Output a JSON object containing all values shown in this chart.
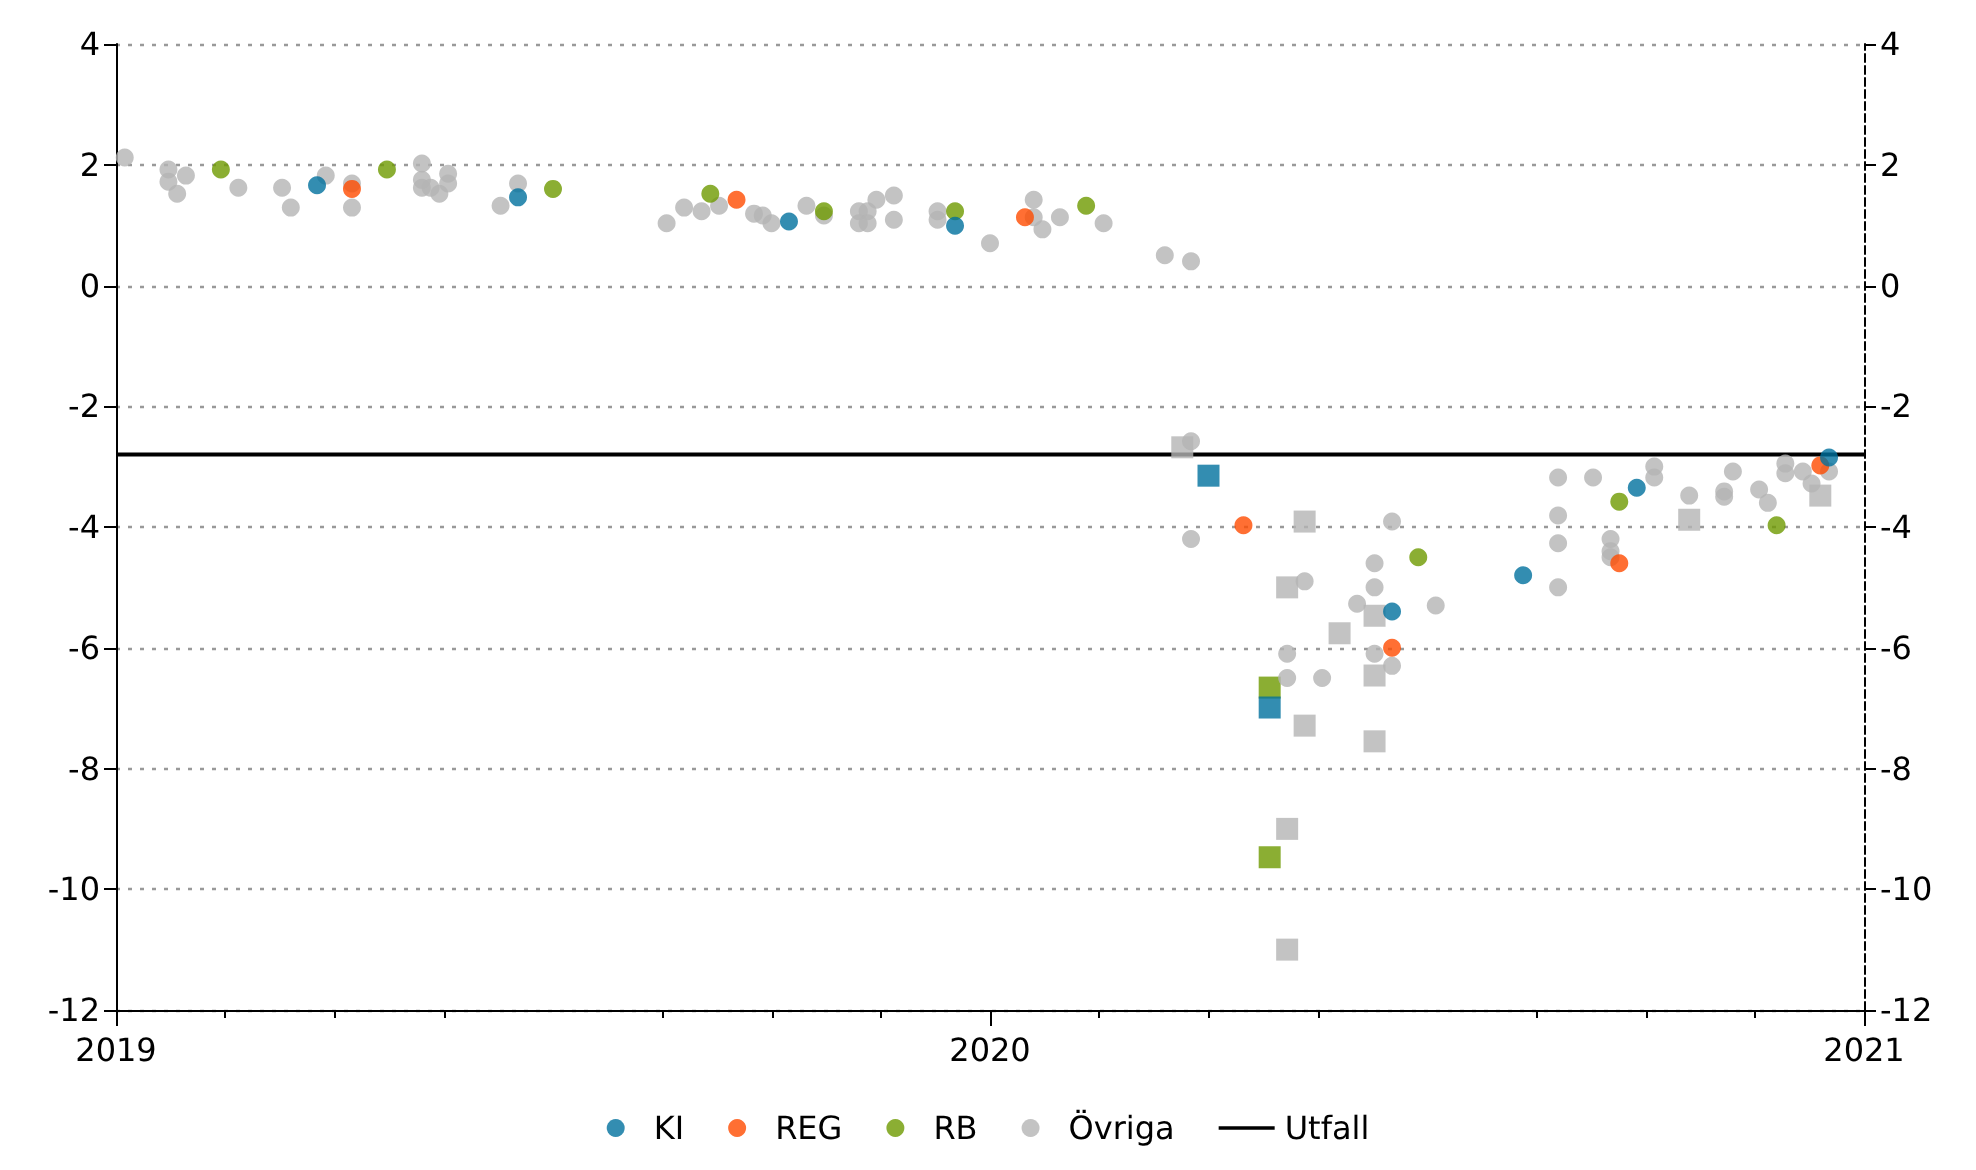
{
  "chart_data": {
    "type": "scatter",
    "xlim": [
      2019,
      2021
    ],
    "xticks": [
      2019,
      2020,
      2021
    ],
    "ylim": [
      -12,
      4
    ],
    "yticks": [
      -12,
      -10,
      -8,
      -6,
      -4,
      -2,
      0,
      2,
      4
    ],
    "y2lim": [
      -12,
      4
    ],
    "y2ticks": [
      -12,
      -10,
      -8,
      -6,
      -4,
      -2,
      0,
      2,
      4
    ],
    "grid": "y",
    "legend": "bottom",
    "series": [
      {
        "name": "KI",
        "color": "#00709e",
        "marker": "circle",
        "x": [
          2019.23,
          2019.46,
          2019.77,
          2019.96,
          2020.46,
          2020.61,
          2020.74,
          2020.96
        ],
        "values": [
          1.66,
          1.46,
          1.06,
          0.99,
          -5.4,
          -4.8,
          -3.35,
          -2.85
        ]
      },
      {
        "name": "REG",
        "color": "#ff4b00",
        "marker": "circle",
        "x": [
          2019.27,
          2019.71,
          2020.04,
          2020.29,
          2020.46,
          2020.72,
          2020.95
        ],
        "values": [
          1.6,
          1.42,
          1.13,
          -3.97,
          -6.0,
          -4.6,
          -2.98
        ]
      },
      {
        "name": "RB",
        "color": "#6e9a00",
        "marker": "circle",
        "x": [
          2019.12,
          2019.31,
          2019.5,
          2019.68,
          2019.81,
          2019.96,
          2020.11,
          2020.49,
          2020.72,
          2020.9
        ],
        "values": [
          1.92,
          1.92,
          1.6,
          1.52,
          1.23,
          1.23,
          1.32,
          -4.5,
          -3.58,
          -3.97
        ]
      },
      {
        "name": "Övriga",
        "color": "#b4b4b4",
        "marker": "circle",
        "x": [
          2019.01,
          2019.06,
          2019.06,
          2019.07,
          2019.08,
          2019.14,
          2019.19,
          2019.2,
          2019.24,
          2019.27,
          2019.27,
          2019.35,
          2019.35,
          2019.35,
          2019.36,
          2019.37,
          2019.38,
          2019.38,
          2019.44,
          2019.46,
          2019.63,
          2019.65,
          2019.67,
          2019.69,
          2019.73,
          2019.74,
          2019.75,
          2019.79,
          2019.81,
          2019.85,
          2019.86,
          2019.85,
          2019.86,
          2019.87,
          2019.89,
          2019.89,
          2019.94,
          2019.94,
          2020.0,
          2020.05,
          2020.05,
          2020.06,
          2020.08,
          2020.13,
          2020.2,
          2020.23,
          2020.23,
          2020.23,
          2020.36,
          2020.46,
          2020.44,
          2020.44,
          2020.42,
          2020.51,
          2020.34,
          2020.34,
          2020.38,
          2020.44,
          2020.46,
          2020.65,
          2020.69,
          2020.76,
          2020.76,
          2020.65,
          2020.65,
          2020.71,
          2020.71,
          2020.71,
          2020.65,
          2020.8,
          2020.85,
          2020.84,
          2020.84,
          2020.88,
          2020.89,
          2020.91,
          2020.91,
          2020.93,
          2020.94,
          2020.96
        ],
        "values": [
          2.12,
          1.92,
          1.72,
          1.52,
          1.82,
          1.62,
          1.62,
          1.29,
          1.82,
          1.29,
          1.69,
          1.62,
          1.75,
          2.02,
          1.62,
          1.52,
          1.85,
          1.69,
          1.32,
          1.69,
          1.03,
          1.29,
          1.23,
          1.32,
          1.19,
          1.16,
          1.03,
          1.32,
          1.16,
          1.23,
          1.23,
          1.03,
          1.03,
          1.42,
          1.49,
          1.09,
          1.09,
          1.23,
          0.7,
          1.42,
          1.13,
          0.93,
          1.13,
          1.03,
          0.5,
          0.4,
          -2.58,
          -4.2,
          -4.9,
          -3.91,
          -4.6,
          -5.0,
          -5.27,
          -5.3,
          -6.1,
          -6.5,
          -6.5,
          -6.1,
          -6.3,
          -3.18,
          -3.18,
          -3.0,
          -3.18,
          -3.81,
          -4.27,
          -4.2,
          -4.4,
          -4.5,
          -5.0,
          -3.48,
          -3.08,
          -3.41,
          -3.5,
          -3.38,
          -3.6,
          -2.95,
          -3.11,
          -3.08,
          -3.28,
          -3.08
        ]
      },
      {
        "color": "#00709e",
        "marker": "square",
        "x": [
          2020.25,
          2020.32
        ],
        "values": [
          -3.15,
          -6.99
        ]
      },
      {
        "color": "#6e9a00",
        "marker": "square",
        "x": [
          2020.32,
          2020.32
        ],
        "values": [
          -6.66,
          -9.47
        ]
      },
      {
        "color": "#b4b4b4",
        "marker": "square",
        "x": [
          2020.22,
          2020.36,
          2020.34,
          2020.36,
          2020.4,
          2020.44,
          2020.44,
          2020.44,
          2020.34,
          2020.34,
          2020.8,
          2020.95
        ],
        "values": [
          -2.68,
          -3.91,
          -5.0,
          -7.29,
          -5.76,
          -6.46,
          -7.55,
          -5.47,
          -9.0,
          -11.0,
          -3.88,
          -3.48
        ]
      },
      {
        "name": "Utfall",
        "type": "line",
        "color": "#000000",
        "marker": "none",
        "line_style": "solid",
        "x": [
          2019,
          2021
        ],
        "values": [
          -2.8,
          -2.8
        ]
      }
    ]
  }
}
